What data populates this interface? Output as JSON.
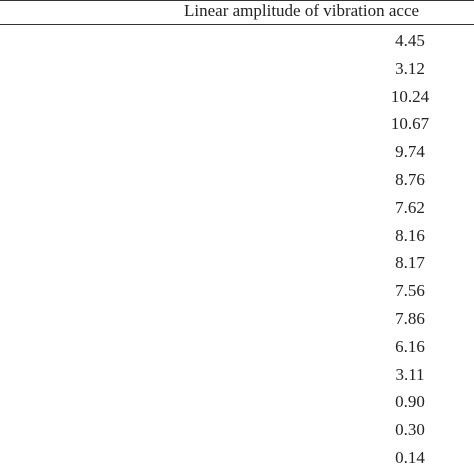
{
  "table": {
    "header": "Linear amplitude of vibration acce",
    "rows": [
      "4.45",
      "3.12",
      "10.24",
      "10.67",
      "9.74",
      "8.76",
      "7.62",
      "8.16",
      "8.17",
      "7.56",
      "7.86",
      "6.16",
      "3.11",
      "0.90",
      "0.30",
      "0.14"
    ]
  }
}
